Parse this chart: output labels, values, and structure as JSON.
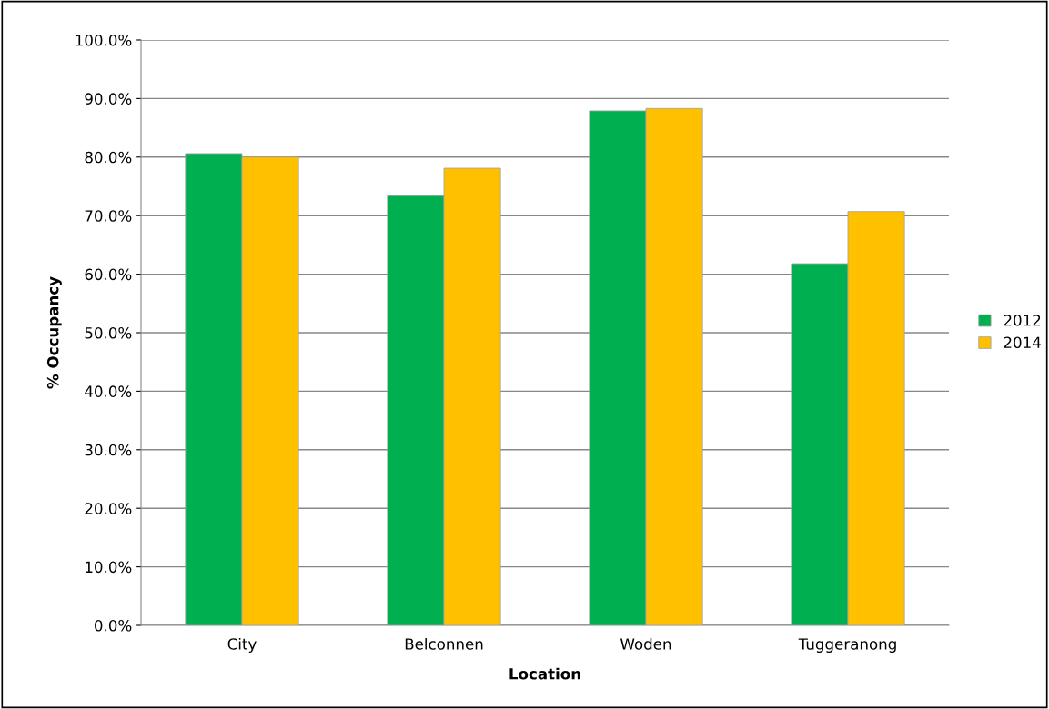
{
  "chart_data": {
    "type": "bar",
    "xlabel": "Location",
    "ylabel": "% Occupancy",
    "categories": [
      "City",
      "Belconnen",
      "Woden",
      "Tuggeranong"
    ],
    "series": [
      {
        "name": "2012",
        "color": "#00b050",
        "values": [
          80.6,
          73.4,
          87.9,
          61.8
        ]
      },
      {
        "name": "2014",
        "color": "#ffc000",
        "values": [
          80.0,
          78.1,
          88.3,
          70.7
        ]
      }
    ],
    "ylim": [
      0,
      100
    ],
    "yticks": [
      {
        "value": 0,
        "label": "0.0%"
      },
      {
        "value": 10,
        "label": "10.0%"
      },
      {
        "value": 20,
        "label": "20.0%"
      },
      {
        "value": 30,
        "label": "30.0%"
      },
      {
        "value": 40,
        "label": "40.0%"
      },
      {
        "value": 50,
        "label": "50.0%"
      },
      {
        "value": 60,
        "label": "60.0%"
      },
      {
        "value": 70,
        "label": "70.0%"
      },
      {
        "value": 80,
        "label": "80.0%"
      },
      {
        "value": 90,
        "label": "90.0%"
      },
      {
        "value": 100,
        "label": "100.0%"
      }
    ],
    "grid": "y",
    "legend": "right"
  }
}
